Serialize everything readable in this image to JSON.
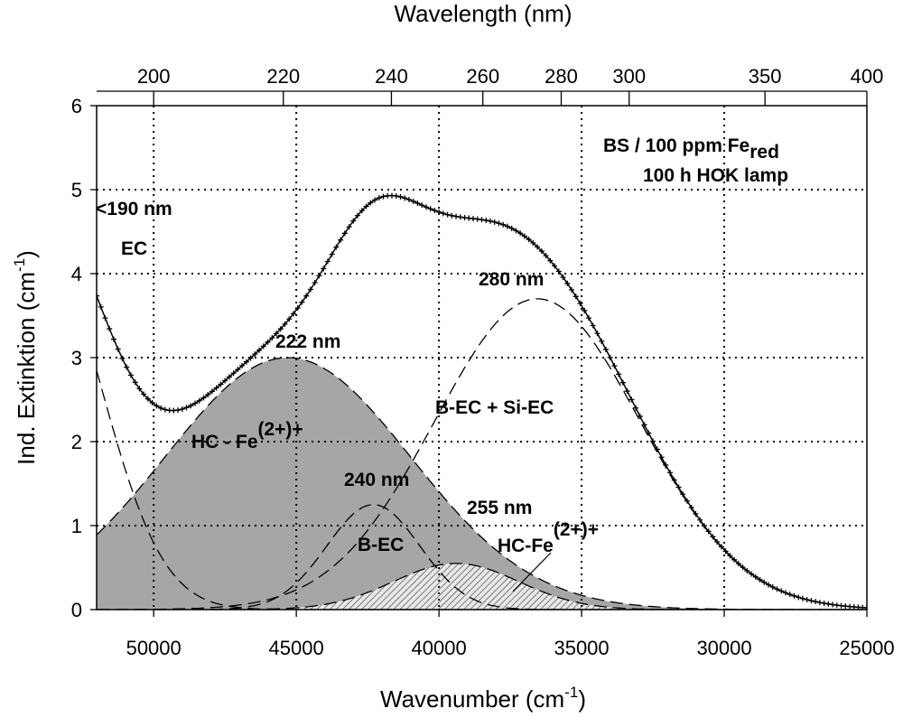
{
  "chart_data": {
    "type": "line",
    "xlabel": "Wavenumber (cm",
    "xlabel_sup": "-1",
    "xlabel_end": ")",
    "ylabel": "Ind. Extinktion (cm",
    "ylabel_sup": "-1",
    "ylabel_end": ")",
    "top_xlabel": "Wavelength (nm)",
    "xlim": [
      52000,
      25000
    ],
    "ylim": [
      0,
      6
    ],
    "x_ticks": [
      50000,
      45000,
      40000,
      35000,
      30000,
      25000
    ],
    "y_ticks": [
      0,
      1,
      2,
      3,
      4,
      5,
      6
    ],
    "top_ticks_nm": [
      200,
      220,
      240,
      260,
      280,
      300,
      350,
      400
    ],
    "grid": "dotted",
    "legend_text": {
      "line1": "BS / 100 ppm Fe",
      "line1_sub": "red",
      "line2": "100 h HOK lamp"
    },
    "components": [
      {
        "name": "EC",
        "label": "<190 nm",
        "center": 54000,
        "amplitude": 4.35,
        "sigma": 2170,
        "style": "dashed"
      },
      {
        "name": "HC - Fe(2+)+",
        "label": "222 nm",
        "center": 45300,
        "amplitude": 3.0,
        "sigma": 4300,
        "style": "gray-fill"
      },
      {
        "name": "B-EC",
        "label": "240 nm",
        "center": 42300,
        "amplitude": 1.25,
        "sigma": 1630,
        "style": "dashed"
      },
      {
        "name": "HC-Fe(2+)+",
        "label": "255 nm",
        "center": 39400,
        "amplitude": 0.55,
        "sigma": 2200,
        "style": "hatched"
      },
      {
        "name": "B-EC + Si-EC",
        "label": "280 nm",
        "center": 36550,
        "amplitude": 3.7,
        "sigma": 3600,
        "style": "dashed"
      }
    ],
    "measured": {
      "name": "measured spectrum",
      "marker": "+",
      "peak_value": 5.15
    }
  },
  "annotations": {
    "ec_nm": "<190 nm",
    "ec": "EC",
    "hc222_nm": "222 nm",
    "hc222": "HC - Fe",
    "hc222_sup": "(2+)+",
    "bec240_nm": "240 nm",
    "bec": "B-EC",
    "hc255_nm": "255 nm",
    "hc255": "HC-Fe",
    "hc255_sup": "(2+)+",
    "b280_nm": "280 nm",
    "b280": "B-EC + Si-EC"
  }
}
